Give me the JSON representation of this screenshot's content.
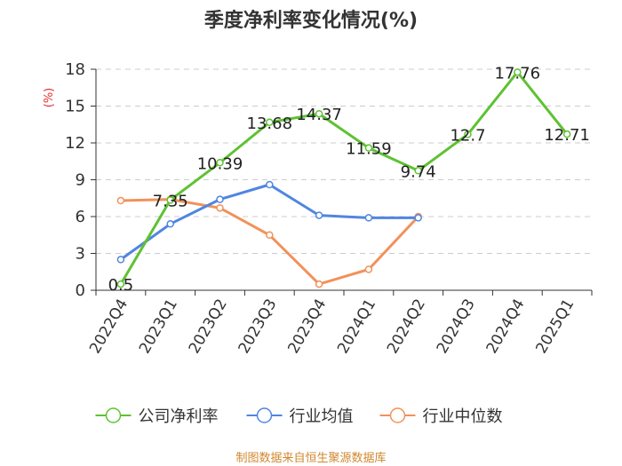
{
  "chart_data": {
    "type": "line",
    "title": "季度净利率变化情况(%)",
    "ylabel": "(%)",
    "xlabel": "",
    "ylim": [
      0,
      18
    ],
    "yticks": [
      0,
      3,
      6,
      9,
      12,
      15,
      18
    ],
    "grid": true,
    "legend_position": "bottom",
    "categories": [
      "2022Q4",
      "2023Q1",
      "2023Q2",
      "2023Q3",
      "2023Q4",
      "2024Q1",
      "2024Q2",
      "2024Q3",
      "2024Q4",
      "2025Q1"
    ],
    "series": [
      {
        "name": "公司净利率",
        "color": "#5ec232",
        "values": [
          0.5,
          7.35,
          10.39,
          13.68,
          14.37,
          11.59,
          9.74,
          12.7,
          17.76,
          12.71
        ],
        "labels": [
          "0.5",
          "7.35",
          "10.39",
          "13.68",
          "14.37",
          "11.59",
          "9.74",
          "12.7",
          "17.76",
          "12.71"
        ],
        "show_labels": true
      },
      {
        "name": "行业均值",
        "color": "#4f86e0",
        "values": [
          2.5,
          5.4,
          7.4,
          8.6,
          6.1,
          5.9,
          5.9,
          null,
          null,
          null
        ],
        "show_labels": false
      },
      {
        "name": "行业中位数",
        "color": "#f2915a",
        "values": [
          7.3,
          7.4,
          6.7,
          4.5,
          0.5,
          1.7,
          6.0,
          null,
          null,
          null
        ],
        "show_labels": false
      }
    ],
    "source": "制图数据来自恒生聚源数据库"
  }
}
